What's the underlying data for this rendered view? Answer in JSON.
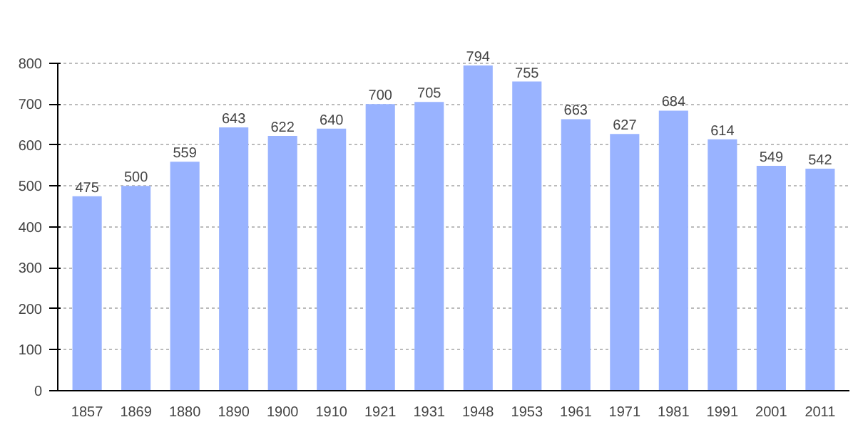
{
  "chart_data": {
    "type": "bar",
    "categories": [
      "1857",
      "1869",
      "1880",
      "1890",
      "1900",
      "1910",
      "1921",
      "1931",
      "1948",
      "1953",
      "1961",
      "1971",
      "1981",
      "1991",
      "2001",
      "2011"
    ],
    "values": [
      475,
      500,
      559,
      643,
      622,
      640,
      700,
      705,
      794,
      755,
      663,
      627,
      684,
      614,
      549,
      542
    ],
    "color": "#99b3ff",
    "ylim": [
      0,
      800
    ],
    "yticks": [
      0,
      100,
      200,
      300,
      400,
      500,
      600,
      700,
      800
    ],
    "grid": "y",
    "data_labels": true
  }
}
